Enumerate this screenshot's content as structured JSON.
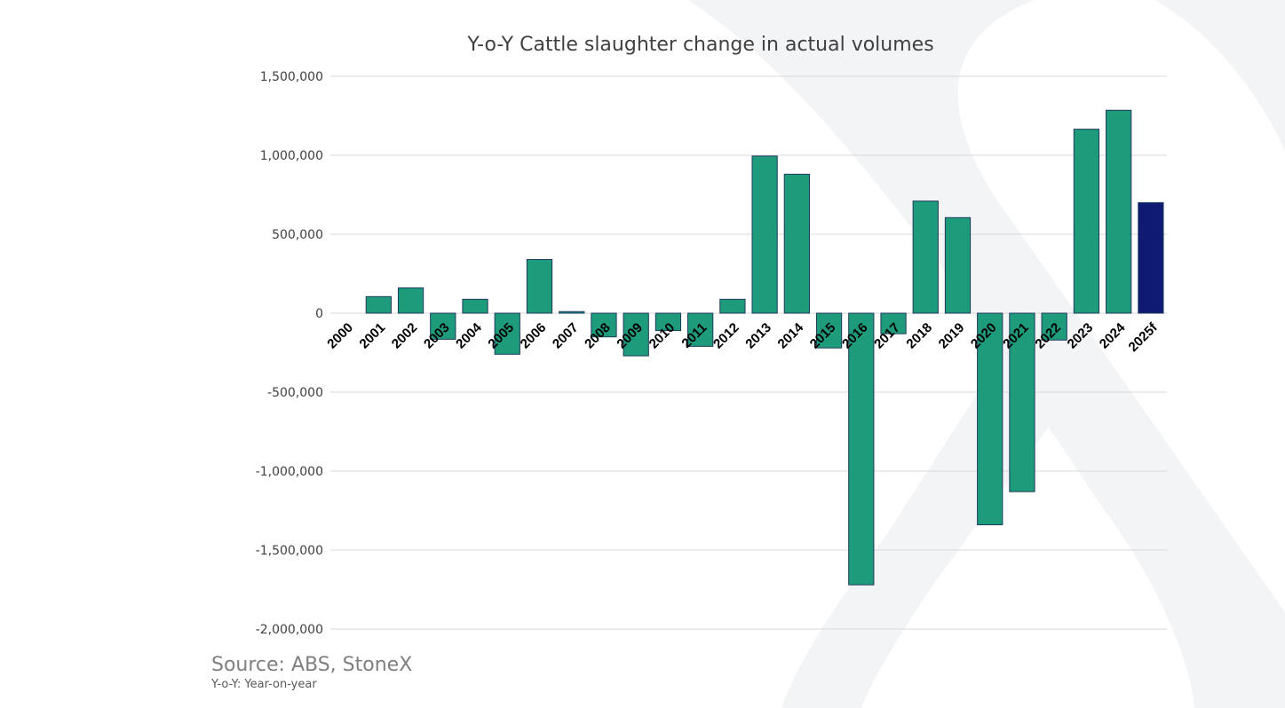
{
  "colors": {
    "bar": "#1e9b7b",
    "bar_forecast": "#0f1a72",
    "bar_outline": "#1f3a5f",
    "watermark": "#f3f4f6"
  },
  "watermark_icon": "stonex-x-logo",
  "source_text": "Source: ABS, StoneX",
  "footnote_text": "Y-o-Y: Year-on-year",
  "chart_data": {
    "type": "bar",
    "title": "Y-o-Y Cattle slaughter change in actual volumes",
    "xlabel": "",
    "ylabel": "",
    "ylim": [
      -2000000,
      1500000
    ],
    "yticks": [
      1500000,
      1000000,
      500000,
      0,
      -500000,
      -1000000,
      -1500000,
      -2000000
    ],
    "ytick_labels": [
      "1,500,000",
      "1,000,000",
      "500,000",
      "0",
      "-500,000",
      "-1,000,000",
      "-1,500,000",
      "-2,000,000"
    ],
    "grid": true,
    "legend": "none",
    "categories": [
      "2000",
      "2001",
      "2002",
      "2003",
      "2004",
      "2005",
      "2006",
      "2007",
      "2008",
      "2009",
      "2010",
      "2011",
      "2012",
      "2013",
      "2014",
      "2015",
      "2016",
      "2017",
      "2018",
      "2019",
      "2020",
      "2021",
      "2022",
      "2023",
      "2024",
      "2025f"
    ],
    "values": [
      0,
      105000,
      160000,
      -165000,
      88000,
      -260000,
      340000,
      10000,
      -150000,
      -270000,
      -110000,
      -210000,
      88000,
      995000,
      880000,
      -220000,
      -1720000,
      -130000,
      710000,
      605000,
      -1340000,
      -1130000,
      -170000,
      1165000,
      1285000,
      700000
    ],
    "forecast_categories": [
      "2025f"
    ]
  }
}
